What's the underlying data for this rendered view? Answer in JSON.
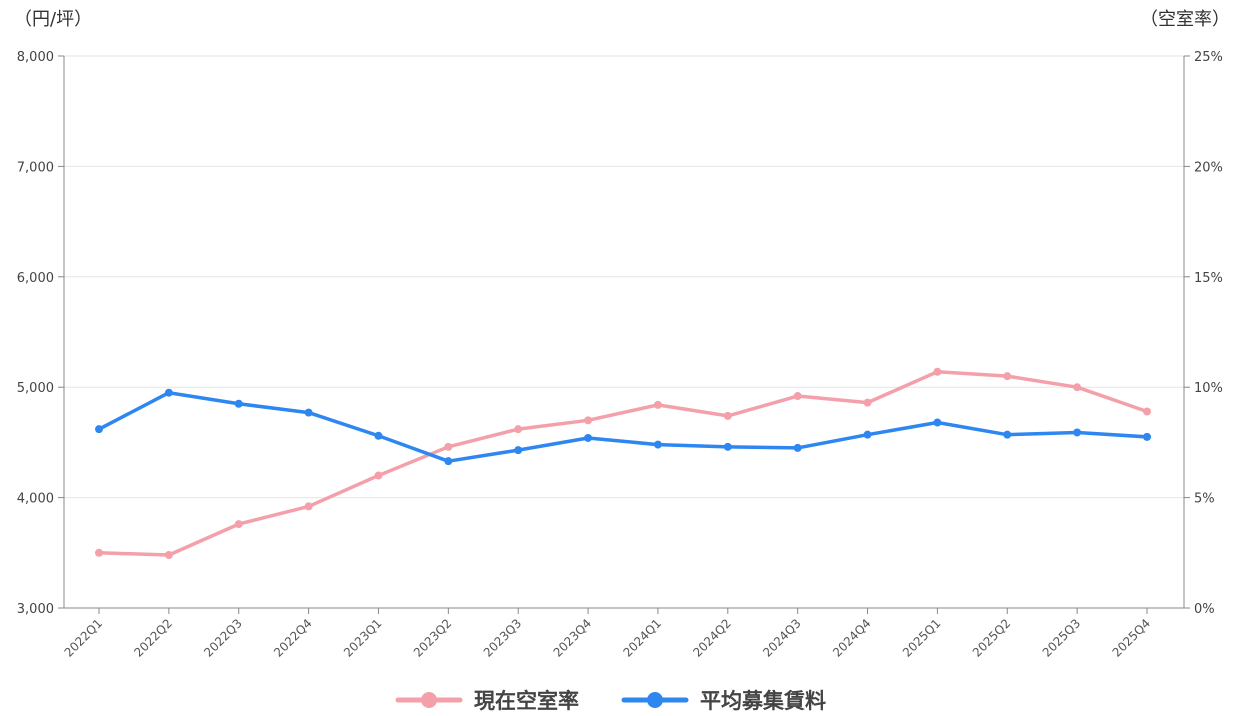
{
  "chart_data": {
    "type": "line",
    "left_unit": "（円/坪）",
    "right_unit": "（空室率）",
    "categories": [
      "2022Q1",
      "2022Q2",
      "2022Q3",
      "2022Q4",
      "2023Q1",
      "2023Q2",
      "2023Q3",
      "2023Q4",
      "2024Q1",
      "2024Q2",
      "2024Q3",
      "2024Q4",
      "2025Q1",
      "2025Q2",
      "2025Q3",
      "2025Q4"
    ],
    "y_left": {
      "min": 3000,
      "max": 8000,
      "ticks": [
        "3,000",
        "4,000",
        "5,000",
        "6,000",
        "7,000",
        "8,000"
      ]
    },
    "y_right": {
      "min": 0,
      "max": 25,
      "ticks": [
        "0%",
        "5%",
        "10%",
        "15%",
        "20%",
        "25%"
      ]
    },
    "grid": true,
    "legend_position": "bottom",
    "series": [
      {
        "name": "現在空室率",
        "axis": "right",
        "color": "#f4a0aa",
        "values": [
          2.5,
          2.4,
          3.8,
          4.6,
          6.0,
          7.3,
          8.1,
          8.5,
          9.2,
          8.7,
          9.6,
          9.3,
          10.7,
          10.5,
          10.0,
          8.9
        ]
      },
      {
        "name": "平均募集賃料",
        "axis": "left",
        "color": "#2e86f0",
        "values": [
          4620,
          4950,
          4850,
          4770,
          4560,
          4330,
          4430,
          4540,
          4480,
          4460,
          4450,
          4570,
          4680,
          4570,
          4590,
          4550
        ]
      }
    ]
  }
}
